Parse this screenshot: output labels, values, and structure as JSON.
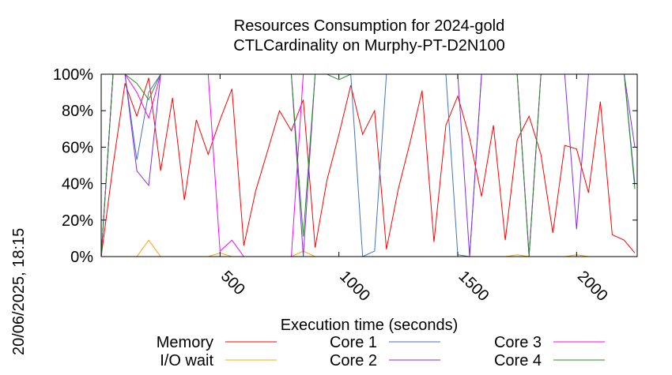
{
  "chart_data": {
    "type": "line",
    "title": "Resources Consumption for 2024-gold",
    "subtitle": "CTLCardinality on Murphy-PT-D2N100",
    "xlabel": "Execution time (seconds)",
    "ylabel": "",
    "xlim": [
      0,
      2255
    ],
    "ylim": [
      0,
      100
    ],
    "x_ticks": [
      500,
      1000,
      1500,
      2000
    ],
    "x_tick_labels": [
      "500",
      "1000",
      "1500",
      "2000"
    ],
    "y_ticks": [
      0,
      20,
      40,
      60,
      80,
      100
    ],
    "y_tick_labels": [
      "0%",
      "20%",
      "40%",
      "60%",
      "80%",
      "100%"
    ],
    "grid": false,
    "legend_position": "bottom",
    "timestamp": "20/06/2025, 18:15",
    "series": [
      {
        "name": "Memory",
        "color": "#ff0000",
        "points": [
          [
            0,
            0
          ],
          [
            50,
            50
          ],
          [
            100,
            95
          ],
          [
            150,
            77
          ],
          [
            200,
            98
          ],
          [
            250,
            47
          ],
          [
            300,
            87
          ],
          [
            350,
            31
          ],
          [
            400,
            75
          ],
          [
            450,
            56
          ],
          [
            500,
            75
          ],
          [
            550,
            92
          ],
          [
            600,
            6
          ],
          [
            650,
            36
          ],
          [
            700,
            58
          ],
          [
            750,
            80
          ],
          [
            800,
            69
          ],
          [
            850,
            86
          ],
          [
            900,
            5
          ],
          [
            950,
            42
          ],
          [
            1000,
            67
          ],
          [
            1050,
            94
          ],
          [
            1100,
            67
          ],
          [
            1150,
            80
          ],
          [
            1200,
            4
          ],
          [
            1250,
            37
          ],
          [
            1300,
            63
          ],
          [
            1350,
            91
          ],
          [
            1400,
            8
          ],
          [
            1450,
            72
          ],
          [
            1500,
            88
          ],
          [
            1550,
            65
          ],
          [
            1600,
            33
          ],
          [
            1650,
            72
          ],
          [
            1700,
            9
          ],
          [
            1750,
            64
          ],
          [
            1800,
            77
          ],
          [
            1850,
            56
          ],
          [
            1900,
            13
          ],
          [
            1950,
            61
          ],
          [
            2000,
            59
          ],
          [
            2050,
            35
          ],
          [
            2100,
            85
          ],
          [
            2150,
            12
          ],
          [
            2200,
            9
          ],
          [
            2245,
            2
          ]
        ]
      },
      {
        "name": "I/O wait",
        "color": "#ffa500",
        "points": [
          [
            0,
            0
          ],
          [
            150,
            0
          ],
          [
            200,
            9
          ],
          [
            250,
            0
          ],
          [
            450,
            0
          ],
          [
            500,
            2
          ],
          [
            550,
            0
          ],
          [
            800,
            0
          ],
          [
            850,
            3
          ],
          [
            900,
            0
          ],
          [
            1700,
            0
          ],
          [
            1750,
            1
          ],
          [
            1800,
            0
          ],
          [
            1950,
            0
          ],
          [
            2000,
            1
          ],
          [
            2050,
            0
          ],
          [
            2245,
            0
          ]
        ]
      },
      {
        "name": "Core 1",
        "color": "#4472c4",
        "points": [
          [
            0,
            0
          ],
          [
            50,
            100
          ],
          [
            100,
            100
          ],
          [
            150,
            53
          ],
          [
            200,
            90
          ],
          [
            250,
            100
          ],
          [
            1050,
            100
          ],
          [
            1100,
            0
          ],
          [
            1150,
            3
          ],
          [
            1200,
            100
          ],
          [
            1450,
            100
          ],
          [
            1500,
            1
          ],
          [
            1550,
            0
          ],
          [
            1600,
            100
          ],
          [
            1750,
            100
          ],
          [
            1800,
            0
          ],
          [
            1850,
            100
          ],
          [
            2200,
            100
          ],
          [
            2245,
            40
          ]
        ]
      },
      {
        "name": "Core 2",
        "color": "#8a2be2",
        "points": [
          [
            0,
            0
          ],
          [
            50,
            100
          ],
          [
            100,
            100
          ],
          [
            150,
            47
          ],
          [
            200,
            39
          ],
          [
            250,
            100
          ],
          [
            800,
            100
          ],
          [
            850,
            0
          ],
          [
            900,
            100
          ],
          [
            1500,
            100
          ],
          [
            1550,
            0
          ],
          [
            1600,
            100
          ],
          [
            1950,
            100
          ],
          [
            2000,
            15
          ],
          [
            2050,
            100
          ],
          [
            2200,
            100
          ],
          [
            2245,
            60
          ]
        ]
      },
      {
        "name": "Core 3",
        "color": "#ff00ff",
        "points": [
          [
            0,
            0
          ],
          [
            50,
            100
          ],
          [
            100,
            100
          ],
          [
            150,
            90
          ],
          [
            200,
            76
          ],
          [
            250,
            100
          ],
          [
            450,
            100
          ],
          [
            500,
            3
          ],
          [
            550,
            9
          ],
          [
            600,
            0
          ],
          [
            800,
            0
          ],
          [
            850,
            100
          ],
          [
            1750,
            100
          ],
          [
            1800,
            1
          ],
          [
            1850,
            100
          ],
          [
            2245,
            100
          ]
        ]
      },
      {
        "name": "Core 4",
        "color": "#2e8b2e",
        "points": [
          [
            0,
            0
          ],
          [
            50,
            100
          ],
          [
            100,
            100
          ],
          [
            150,
            95
          ],
          [
            200,
            86
          ],
          [
            250,
            100
          ],
          [
            800,
            100
          ],
          [
            850,
            11
          ],
          [
            900,
            100
          ],
          [
            950,
            100
          ],
          [
            1000,
            97
          ],
          [
            1050,
            100
          ],
          [
            1750,
            100
          ],
          [
            1800,
            0
          ],
          [
            1850,
            100
          ],
          [
            2200,
            100
          ],
          [
            2245,
            37
          ]
        ]
      }
    ]
  }
}
